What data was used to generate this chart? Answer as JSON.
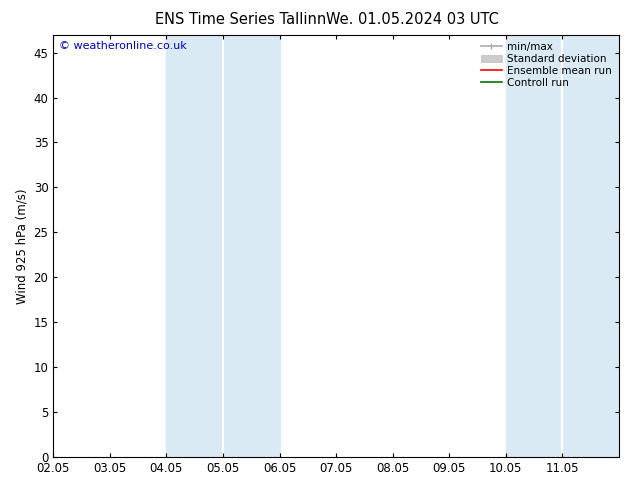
{
  "title_left": "ENS Time Series Tallinn",
  "title_right": "We. 01.05.2024 03 UTC",
  "ylabel": "Wind 925 hPa (m/s)",
  "watermark": "© weatheronline.co.uk",
  "xlim_start": 0,
  "xlim_end": 10,
  "ylim_min": 0,
  "ylim_max": 47,
  "yticks": [
    0,
    5,
    10,
    15,
    20,
    25,
    30,
    35,
    40,
    45
  ],
  "xtick_labels": [
    "02.05",
    "03.05",
    "04.05",
    "05.05",
    "06.05",
    "07.05",
    "08.05",
    "09.05",
    "10.05",
    "11.05"
  ],
  "shaded_bands": [
    {
      "xmin": 2.0,
      "xmax": 3.0,
      "color": "#daeaf5"
    },
    {
      "xmin": 3.0,
      "xmax": 4.0,
      "color": "#daeaf5"
    },
    {
      "xmin": 8.0,
      "xmax": 9.0,
      "color": "#daeaf5"
    },
    {
      "xmin": 9.0,
      "xmax": 10.0,
      "color": "#daeaf5"
    }
  ],
  "legend_items": [
    {
      "label": "min/max",
      "color": "#aaaaaa",
      "lw": 1.2,
      "style": "minmax"
    },
    {
      "label": "Standard deviation",
      "color": "#cccccc",
      "lw": 6,
      "style": "box"
    },
    {
      "label": "Ensemble mean run",
      "color": "#ff0000",
      "lw": 1.2,
      "style": "line"
    },
    {
      "label": "Controll run",
      "color": "#007700",
      "lw": 1.2,
      "style": "line"
    }
  ],
  "background_color": "#ffffff",
  "plot_bg_color": "#ffffff",
  "border_color": "#000000",
  "title_fontsize": 10.5,
  "axis_fontsize": 8.5,
  "watermark_fontsize": 8,
  "watermark_color": "#0000cc"
}
